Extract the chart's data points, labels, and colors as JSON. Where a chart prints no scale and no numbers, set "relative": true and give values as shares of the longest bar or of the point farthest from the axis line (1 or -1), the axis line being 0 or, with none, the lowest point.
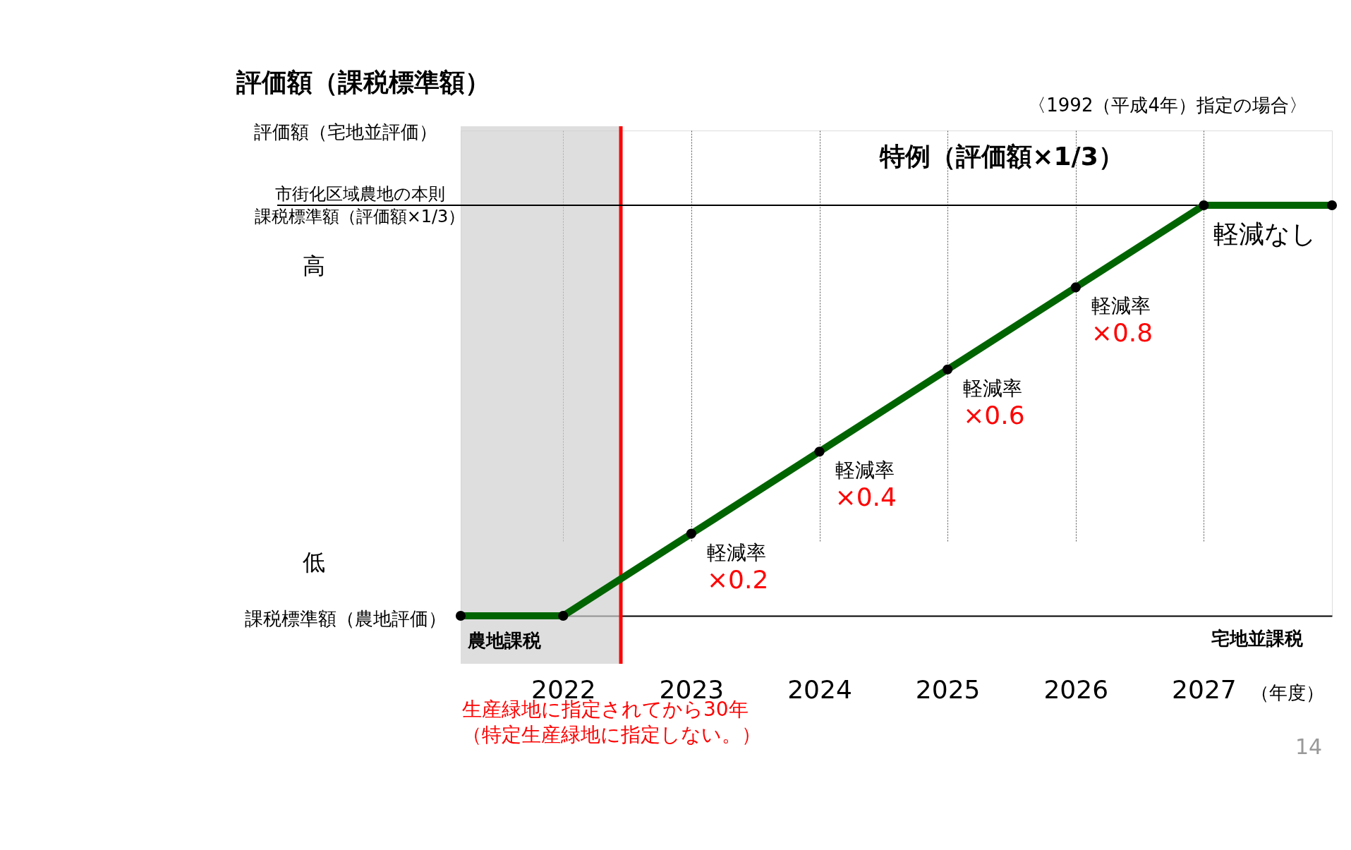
{
  "chart_data": {
    "type": "line",
    "relative": true,
    "title": "評価額（課税標準額）",
    "subtitle": "〈1992（平成4年）指定の場合〉",
    "xlabel": "（年度）",
    "x": [
      2021.2,
      2022,
      2023,
      2024,
      2025,
      2026,
      2027,
      2028
    ],
    "series": [
      {
        "color": "#006400",
        "values": [
          0,
          0,
          0.2,
          0.4,
          0.6,
          0.8,
          1,
          1
        ]
      }
    ],
    "xlim": [
      2021.2,
      2028
    ],
    "xticks": [
      2022,
      2023,
      2024,
      2025,
      2026,
      2027
    ],
    "grid": "x",
    "marker": "circle",
    "line_style": "solid",
    "tick_labels": "x",
    "ref_lines": [
      {
        "axis": "x",
        "value": 2022.45,
        "label": "生産緑地に指定されてから30年（特定生産緑地に指定しない。）",
        "color": "#ff0000"
      },
      {
        "axis": "y",
        "value": 1,
        "label": "市街化区域農地の本則課税標準額（評価額×1/3）",
        "color": "#000000"
      }
    ],
    "bands": [
      {
        "axis": "x",
        "from": 2021.2,
        "to": 2022.45,
        "label": "農地課税",
        "color": "#d0d0d0"
      }
    ],
    "annotations": [
      "評価額（宅地並評価）",
      "高",
      "低",
      "課税標準額（農地評価）",
      "特例（評価額×1/3）",
      "軽減なし",
      "宅地並課税",
      "14",
      {
        "text": "軽減率",
        "x": 2023,
        "y": 0.2
      },
      {
        "text": "×0.2",
        "x": 2023,
        "y": 0.2
      },
      {
        "text": "軽減率",
        "x": 2024,
        "y": 0.4
      },
      {
        "text": "×0.4",
        "x": 2024,
        "y": 0.4
      },
      {
        "text": "軽減率",
        "x": 2025,
        "y": 0.6
      },
      {
        "text": "×0.6",
        "x": 2025,
        "y": 0.6
      },
      {
        "text": "軽減率",
        "x": 2026,
        "y": 0.8
      },
      {
        "text": "×0.8",
        "x": 2026,
        "y": 0.8
      }
    ]
  }
}
